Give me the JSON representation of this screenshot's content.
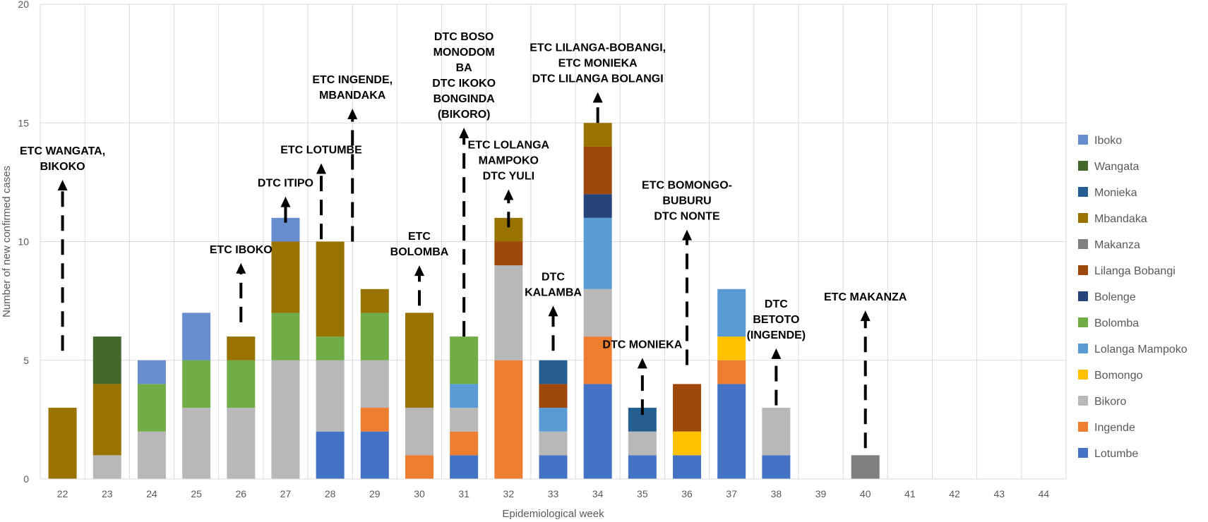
{
  "chart_data": {
    "type": "bar",
    "stacked": true,
    "title": "",
    "xlabel": "Epidemiological week",
    "ylabel": "Number of new confirmed cases",
    "ylim": [
      0,
      20
    ],
    "yticks": [
      0,
      5,
      10,
      15,
      20
    ],
    "grid": true,
    "legend_position": "right",
    "categories": [
      "22",
      "23",
      "24",
      "25",
      "26",
      "27",
      "28",
      "29",
      "30",
      "31",
      "32",
      "33",
      "34",
      "35",
      "36",
      "37",
      "38",
      "39",
      "40",
      "41",
      "42",
      "43",
      "44"
    ],
    "series": [
      {
        "name": "Lotumbe",
        "color": "#4472C4",
        "values": [
          0,
          0,
          0,
          0,
          0,
          0,
          2,
          2,
          0,
          1,
          0,
          1,
          4,
          1,
          1,
          4,
          1,
          0,
          0,
          0,
          0,
          0,
          0
        ]
      },
      {
        "name": "Ingende",
        "color": "#ED7D31",
        "values": [
          0,
          0,
          0,
          0,
          0,
          0,
          0,
          1,
          1,
          1,
          5,
          0,
          2,
          0,
          0,
          1,
          0,
          0,
          0,
          0,
          0,
          0,
          0
        ]
      },
      {
        "name": "Bikoro",
        "color": "#B8B8B8",
        "values": [
          0,
          1,
          2,
          3,
          3,
          5,
          3,
          2,
          2,
          1,
          4,
          1,
          2,
          1,
          0,
          0,
          2,
          0,
          0,
          0,
          0,
          0,
          0
        ]
      },
      {
        "name": "Bomongo",
        "color": "#FFC000",
        "values": [
          0,
          0,
          0,
          0,
          0,
          0,
          0,
          0,
          0,
          0,
          0,
          0,
          0,
          0,
          1,
          1,
          0,
          0,
          0,
          0,
          0,
          0,
          0
        ]
      },
      {
        "name": "Lolanga Mampoko",
        "color": "#5B9BD5",
        "values": [
          0,
          0,
          0,
          0,
          0,
          0,
          0,
          0,
          0,
          1,
          0,
          1,
          3,
          0,
          0,
          2,
          0,
          0,
          0,
          0,
          0,
          0,
          0
        ]
      },
      {
        "name": "Bolomba",
        "color": "#70AD47",
        "values": [
          0,
          0,
          2,
          2,
          2,
          2,
          1,
          2,
          0,
          2,
          0,
          0,
          0,
          0,
          0,
          0,
          0,
          0,
          0,
          0,
          0,
          0,
          0
        ]
      },
      {
        "name": "Bolenge",
        "color": "#264478",
        "values": [
          0,
          0,
          0,
          0,
          0,
          0,
          0,
          0,
          0,
          0,
          0,
          0,
          1,
          0,
          0,
          0,
          0,
          0,
          0,
          0,
          0,
          0,
          0
        ]
      },
      {
        "name": "Lilanga Bobangi",
        "color": "#9E480E",
        "values": [
          0,
          0,
          0,
          0,
          0,
          0,
          0,
          0,
          0,
          0,
          1,
          1,
          2,
          0,
          2,
          0,
          0,
          0,
          0,
          0,
          0,
          0,
          0
        ]
      },
      {
        "name": "Makanza",
        "color": "#7F7F7F",
        "values": [
          0,
          0,
          0,
          0,
          0,
          0,
          0,
          0,
          0,
          0,
          0,
          0,
          0,
          0,
          0,
          0,
          0,
          0,
          1,
          0,
          0,
          0,
          0
        ]
      },
      {
        "name": "Mbandaka",
        "color": "#997300",
        "values": [
          3,
          3,
          0,
          0,
          1,
          3,
          4,
          1,
          4,
          0,
          1,
          0,
          1,
          0,
          0,
          0,
          0,
          0,
          0,
          0,
          0,
          0,
          0
        ]
      },
      {
        "name": "Monieka",
        "color": "#255E91",
        "values": [
          0,
          0,
          0,
          0,
          0,
          0,
          0,
          0,
          0,
          0,
          0,
          1,
          0,
          1,
          0,
          0,
          0,
          0,
          0,
          0,
          0,
          0,
          0
        ]
      },
      {
        "name": "Wangata",
        "color": "#43682B",
        "values": [
          0,
          2,
          0,
          0,
          0,
          0,
          0,
          0,
          0,
          0,
          0,
          0,
          0,
          0,
          0,
          0,
          0,
          0,
          0,
          0,
          0,
          0,
          0
        ]
      },
      {
        "name": "Iboko",
        "color": "#698ED0",
        "values": [
          0,
          0,
          1,
          2,
          0,
          1,
          0,
          0,
          0,
          0,
          0,
          0,
          0,
          0,
          0,
          0,
          0,
          0,
          0,
          0,
          0,
          0,
          0
        ]
      }
    ],
    "annotations": [
      {
        "week": "22",
        "from": 5.4,
        "to": 12.6,
        "lines": [
          "ETC WANGATA,",
          "BIKOKO"
        ]
      },
      {
        "week": "26",
        "from": 6.6,
        "to": 9.1,
        "lines": [
          "ETC IBOKO"
        ]
      },
      {
        "week": "27",
        "from": 10.8,
        "to": 11.9,
        "lines": [
          "DTC ITIPO"
        ]
      },
      {
        "week": "27.8",
        "from": 10.1,
        "to": 13.3,
        "lines": [
          "ETC LOTUMBE"
        ]
      },
      {
        "week": "28.5",
        "from": 10.0,
        "to": 15.6,
        "lines": [
          "ETC INGENDE,",
          "MBANDAKA"
        ]
      },
      {
        "week": "30",
        "from": 7.3,
        "to": 9.0,
        "lines": [
          "ETC",
          "BOLOMBA"
        ]
      },
      {
        "week": "31",
        "from": 6.0,
        "to": 14.8,
        "lines": [
          "DTC BOSO",
          "MONODOM",
          "BA",
          "DTC IKOKO",
          "BONGINDA",
          "(BIKORO)"
        ]
      },
      {
        "week": "32",
        "from": 10.6,
        "to": 12.2,
        "lines": [
          "ETC LOLANGA",
          "MAMPOKO",
          "DTC YULI"
        ]
      },
      {
        "week": "33",
        "from": 5.4,
        "to": 7.3,
        "lines": [
          "DTC",
          "KALAMBA"
        ]
      },
      {
        "week": "34",
        "from": 15.0,
        "to": 16.3,
        "lines": [
          "ETC LILANGA-BOBANGI,",
          "ETC MONIEKA",
          "DTC LILANGA BOLANGI"
        ]
      },
      {
        "week": "35",
        "from": 2.7,
        "to": 5.1,
        "lines": [
          "DTC MONIEKA"
        ]
      },
      {
        "week": "36",
        "from": 4.8,
        "to": 10.5,
        "lines": [
          "ETC BOMONGO-",
          "BUBURU",
          "DTC NONTE"
        ]
      },
      {
        "week": "38",
        "from": 3.1,
        "to": 5.5,
        "lines": [
          "DTC",
          "BETOTO",
          "(INGENDE)"
        ]
      },
      {
        "week": "40",
        "from": 1.3,
        "to": 7.1,
        "lines": [
          "ETC MAKANZA"
        ]
      }
    ]
  }
}
